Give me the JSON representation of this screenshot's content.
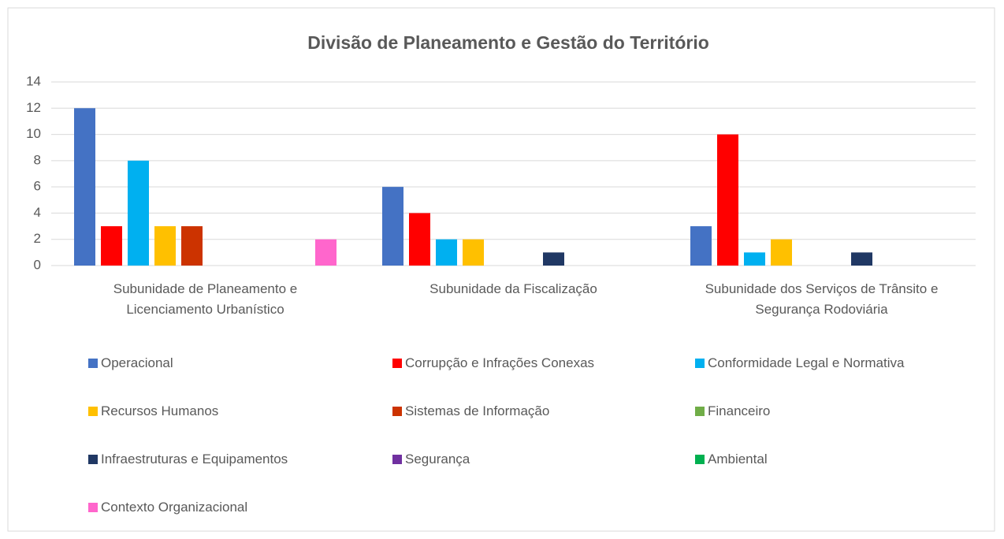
{
  "chart_data": {
    "type": "bar",
    "title": "Divisão de Planeamento e Gestão do Território",
    "categories": [
      "Subunidade de Planeamento e Licenciamento Urbanístico",
      "Subunidade da Fiscalização",
      "Subunidade dos Serviços de Trânsito e Segurança Rodoviária"
    ],
    "series": [
      {
        "name": "Operacional",
        "color": "#4472c4",
        "values": [
          12,
          6,
          3
        ]
      },
      {
        "name": "Corrupção e Infrações Conexas",
        "color": "#ff0000",
        "values": [
          3,
          4,
          10
        ]
      },
      {
        "name": "Conformidade Legal e Normativa",
        "color": "#00b0f0",
        "values": [
          8,
          2,
          1
        ]
      },
      {
        "name": "Recursos Humanos",
        "color": "#ffc000",
        "values": [
          3,
          2,
          2
        ]
      },
      {
        "name": "Sistemas de Informação",
        "color": "#cc3300",
        "values": [
          3,
          0,
          0
        ]
      },
      {
        "name": "Financeiro",
        "color": "#70ad47",
        "values": [
          0,
          0,
          0
        ]
      },
      {
        "name": "Infraestruturas e Equipamentos",
        "color": "#203864",
        "values": [
          0,
          1,
          1
        ]
      },
      {
        "name": "Segurança",
        "color": "#7030a0",
        "values": [
          0,
          0,
          0
        ]
      },
      {
        "name": "Ambiental",
        "color": "#00b050",
        "values": [
          0,
          0,
          0
        ]
      },
      {
        "name": "Contexto Organizacional",
        "color": "#ff66cc",
        "values": [
          2,
          0,
          0
        ]
      }
    ],
    "ylim": [
      0,
      14
    ],
    "yticks": [
      0,
      2,
      4,
      6,
      8,
      10,
      12,
      14
    ],
    "grid": true,
    "legend": "bottom"
  }
}
